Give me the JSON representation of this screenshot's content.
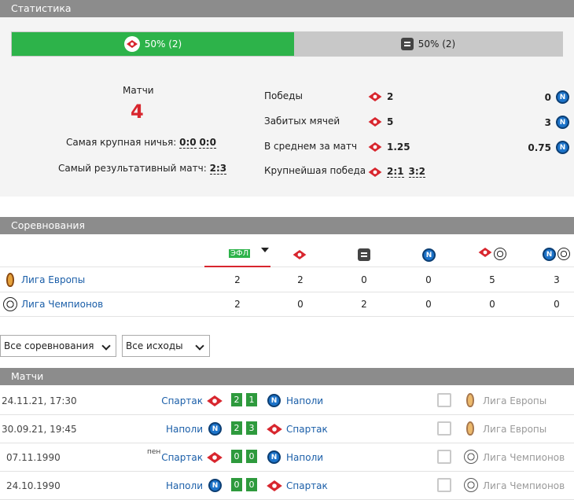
{
  "headers": {
    "stats": "Статистика",
    "competitions": "Соревнования",
    "matches": "Матчи"
  },
  "bar": {
    "left_text": "50% (2)",
    "right_text": "50% (2)",
    "left_fraction": 0.5
  },
  "summary": {
    "matches_label": "Матчи",
    "matches_count": "4",
    "biggest_draw_label": "Самая крупная ничья:",
    "biggest_draw_1": "0:0",
    "biggest_draw_2": "0:0",
    "most_goals_label": "Самый результативный матч:",
    "most_goals_value": "2:3"
  },
  "compare": [
    {
      "label": "Победы",
      "home": "2",
      "away": "0"
    },
    {
      "label": "Забитых мячей",
      "home": "5",
      "away": "3"
    },
    {
      "label": "В среднем за матч",
      "home": "1.25",
      "away": "0.75"
    },
    {
      "label": "Крупнейшая победа",
      "home_a": "2:1",
      "home_b": "3:2"
    }
  ],
  "comp_table": {
    "head_active": "ЭФЛ",
    "rows": [
      {
        "name": "Лига Европы",
        "vals": [
          "2",
          "2",
          "0",
          "0",
          "5",
          "3"
        ]
      },
      {
        "name": "Лига Чемпионов",
        "vals": [
          "2",
          "0",
          "2",
          "0",
          "0",
          "0"
        ]
      }
    ]
  },
  "filters": {
    "competition": "Все соревнования",
    "outcome": "Все исходы"
  },
  "matches": [
    {
      "date": "24.11.21, 17:30",
      "home": "Спартак",
      "away": "Наполи",
      "hs": "2",
      "as": "1",
      "comp": "Лига Европы",
      "home_icon": "spartak",
      "away_icon": "napoli",
      "comp_icon": "el",
      "note": ""
    },
    {
      "date": "30.09.21, 19:45",
      "home": "Наполи",
      "away": "Спартак",
      "hs": "2",
      "as": "3",
      "comp": "Лига Европы",
      "home_icon": "napoli",
      "away_icon": "spartak",
      "comp_icon": "el",
      "note": ""
    },
    {
      "date": "07.11.1990",
      "home": "Спартак",
      "away": "Наполи",
      "hs": "0",
      "as": "0",
      "comp": "Лига Чемпионов",
      "home_icon": "spartak",
      "away_icon": "napoli",
      "comp_icon": "cl",
      "note": "пен"
    },
    {
      "date": "24.10.1990",
      "home": "Наполи",
      "away": "Спартак",
      "hs": "0",
      "as": "0",
      "comp": "Лига Чемпионов",
      "home_icon": "napoli",
      "away_icon": "spartak",
      "comp_icon": "cl",
      "note": ""
    }
  ],
  "colors": {
    "accent_green": "#2db34a",
    "spartak_red": "#d8262e",
    "napoli_blue": "#1c73c9",
    "link": "#1a5ea8"
  }
}
